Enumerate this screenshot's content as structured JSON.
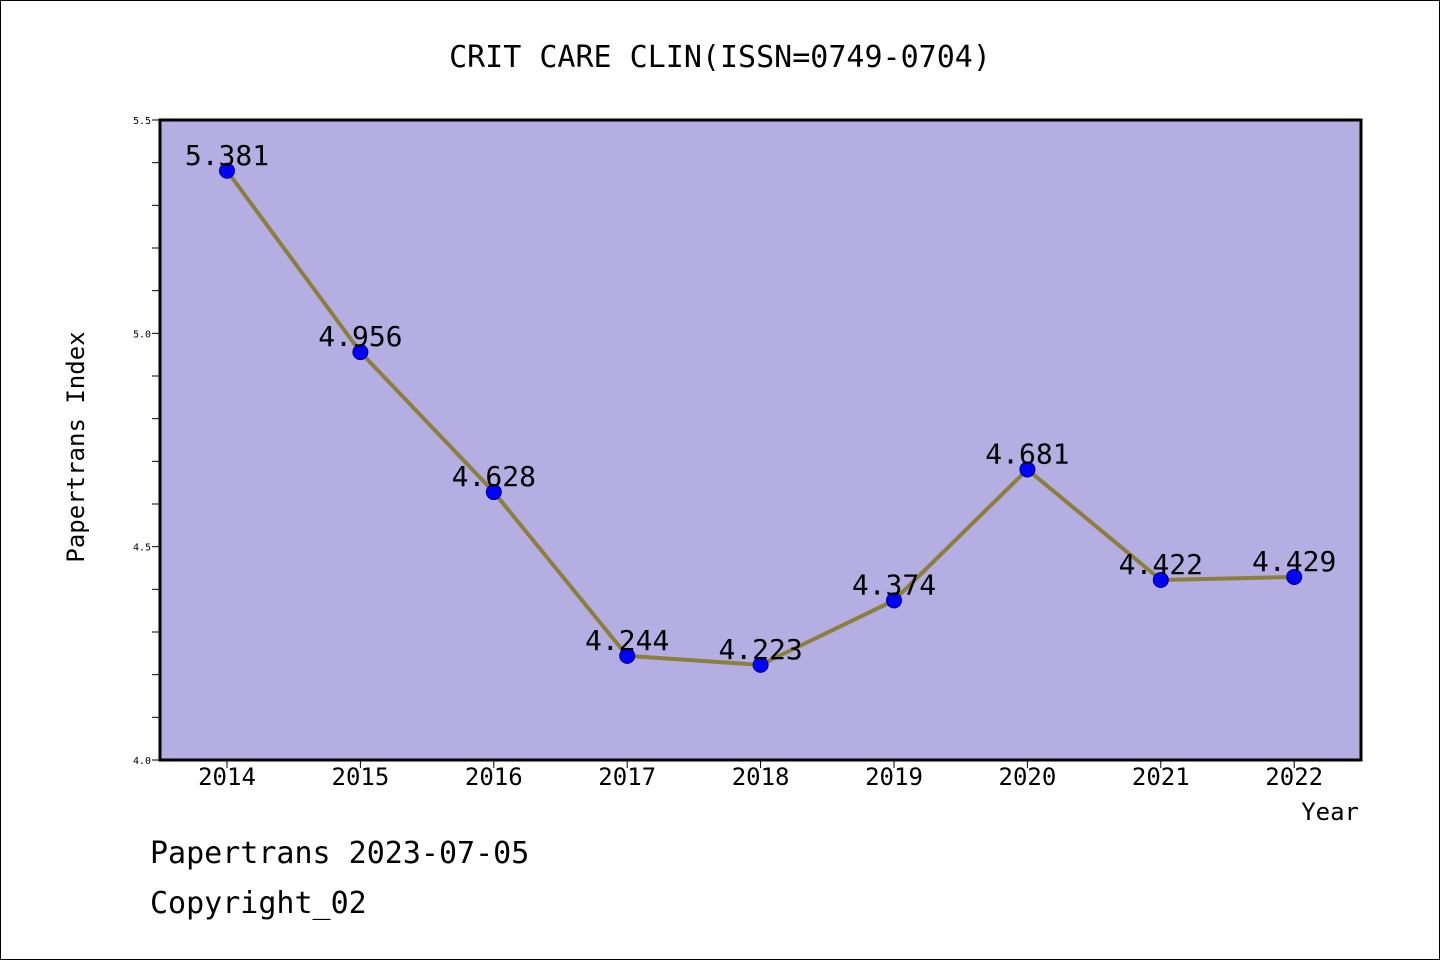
{
  "colors": {
    "plot_background": "#b5aee2",
    "line": "#8c7f3c",
    "marker": "#0000ff",
    "marker_stroke": "#000080",
    "axis": "#000000"
  },
  "chart_data": {
    "type": "line",
    "title": "CRIT CARE CLIN(ISSN=0749-0704)",
    "xlabel": "Year",
    "ylabel": "Papertrans Index",
    "categories": [
      "2014",
      "2015",
      "2016",
      "2017",
      "2018",
      "2019",
      "2020",
      "2021",
      "2022"
    ],
    "series": [
      {
        "values": [
          5.381,
          4.956,
          4.628,
          4.244,
          4.223,
          4.374,
          4.681,
          4.422,
          4.429
        ]
      }
    ],
    "data_labels": [
      "5.381",
      "4.956",
      "4.628",
      "4.244",
      "4.223",
      "4.374",
      "4.681",
      "4.422",
      "4.429"
    ],
    "ylim": [
      4.0,
      5.5
    ],
    "yticks": [
      4.0,
      4.5,
      5.0,
      5.5
    ],
    "ytick_labels": [
      "4.0",
      "4.5",
      "5.0",
      "5.5"
    ],
    "grid": false,
    "legend": "none"
  },
  "footer": {
    "line1": "Papertrans 2023-07-05",
    "line2": "Copyright_02"
  }
}
